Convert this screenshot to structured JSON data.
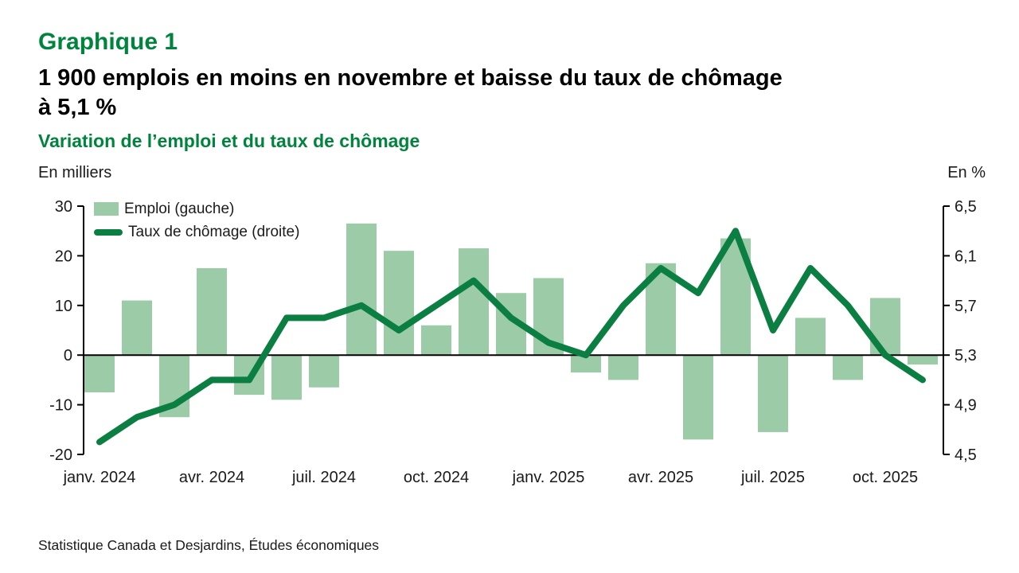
{
  "header": {
    "chart_label": "Graphique 1",
    "title_line1": "1 900 emplois en moins en novembre et baisse du taux de chômage",
    "title_line2": "à 5,1 %",
    "subtitle": "Variation de l’emploi et du taux de chômage",
    "left_unit": "En milliers",
    "right_unit": "En %"
  },
  "legend": [
    {
      "label": "Emploi (gauche)",
      "swatch": "bar"
    },
    {
      "label": "Taux de chômage (droite)",
      "swatch": "line"
    }
  ],
  "source": "Statistique Canada et Desjardins, Études économiques",
  "colors": {
    "accent_green": "#00843D",
    "bar_green": "#9CCBA8",
    "line_green": "#0B7E41",
    "axis_black": "#000000",
    "tick_text": "#1a1a1a"
  },
  "chart_data": {
    "type": "combo-bar-line",
    "n_points": 23,
    "x_tick_labels": [
      {
        "index": 0,
        "label": "janv. 2024"
      },
      {
        "index": 3,
        "label": "avr. 2024"
      },
      {
        "index": 6,
        "label": "juil. 2024"
      },
      {
        "index": 9,
        "label": "oct. 2024"
      },
      {
        "index": 12,
        "label": "janv. 2025"
      },
      {
        "index": 15,
        "label": "avr. 2025"
      },
      {
        "index": 18,
        "label": "juil. 2025"
      },
      {
        "index": 21,
        "label": "oct. 2025"
      }
    ],
    "series": [
      {
        "name": "Emploi (gauche)",
        "type": "bar",
        "axis": "left",
        "values": [
          -7.5,
          11,
          -12.5,
          17.5,
          -8,
          -9,
          -6.5,
          26.5,
          21,
          6,
          21.5,
          12.5,
          15.5,
          -3.5,
          -5,
          18.5,
          -17,
          23.5,
          -15.5,
          7.5,
          -5,
          11.5,
          -1.9
        ]
      },
      {
        "name": "Taux de chômage (droite)",
        "type": "line",
        "axis": "right",
        "values": [
          4.6,
          4.8,
          4.9,
          5.1,
          5.1,
          5.6,
          5.6,
          5.7,
          5.5,
          5.7,
          5.9,
          5.6,
          5.4,
          5.3,
          5.7,
          6.0,
          5.8,
          6.3,
          5.5,
          6.0,
          5.7,
          5.3,
          5.1
        ]
      }
    ],
    "left_axis": {
      "label": "En milliers",
      "min": -20,
      "max": 30,
      "ticks": [
        30,
        20,
        10,
        0,
        -10,
        -20
      ]
    },
    "right_axis": {
      "label": "En %",
      "min": 4.5,
      "max": 6.5,
      "ticks": [
        "6,5",
        "6,1",
        "5,7",
        "5,3",
        "4,9",
        "4,5"
      ]
    },
    "grid": false,
    "legend_position": "top-left-inside"
  }
}
